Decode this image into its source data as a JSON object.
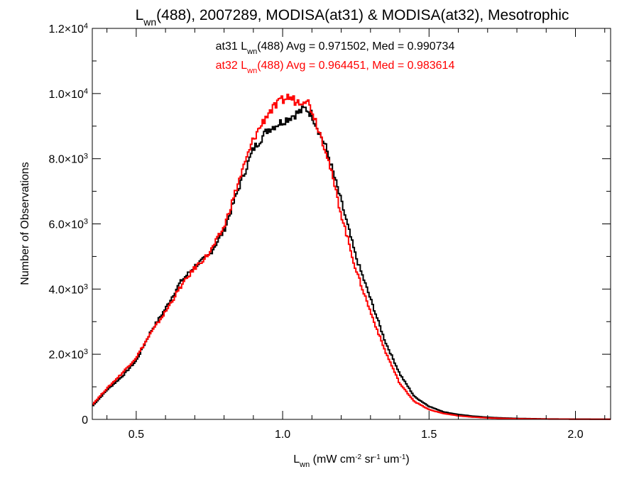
{
  "chart_data": {
    "type": "line",
    "title": {
      "pre": "L",
      "sub": "wn",
      "post": "(488), 2007289, MODISA(at31) & MODISA(at32), Mesotrophic"
    },
    "xlabel": {
      "pre": "L",
      "sub": "wn",
      "rest": " (mW cm",
      "sup1": "-2",
      "mid": " sr",
      "sup2": "-1",
      "mid2": " um",
      "sup3": "-1",
      "end": ")"
    },
    "ylabel": "Number of Observations",
    "xlim": [
      0.35,
      2.12
    ],
    "ylim": [
      0,
      12000
    ],
    "x_ticks": [
      {
        "value": 0.5,
        "label": "0.5"
      },
      {
        "value": 1.0,
        "label": "1.0"
      },
      {
        "value": 1.5,
        "label": "1.5"
      },
      {
        "value": 2.0,
        "label": "2.0"
      }
    ],
    "y_ticks": [
      {
        "value": 0,
        "mant": "0",
        "exp": ""
      },
      {
        "value": 2000,
        "mant": "2.0×10",
        "exp": "3"
      },
      {
        "value": 4000,
        "mant": "4.0×10",
        "exp": "3"
      },
      {
        "value": 6000,
        "mant": "6.0×10",
        "exp": "3"
      },
      {
        "value": 8000,
        "mant": "8.0×10",
        "exp": "3"
      },
      {
        "value": 10000,
        "mant": "1.0×10",
        "exp": "4"
      },
      {
        "value": 12000,
        "mant": "1.2×10",
        "exp": "4"
      }
    ],
    "annotations": [
      {
        "pre": "at31 L",
        "sub": "wn",
        "post": "(488) Avg = 0.971502, Med = 0.990734",
        "color": "#000000"
      },
      {
        "pre": "at32 L",
        "sub": "wn",
        "post": "(488) Avg = 0.964451, Med = 0.983614",
        "color": "#ff0000"
      }
    ],
    "series": [
      {
        "color": "#000000",
        "x": [
          0.35,
          0.4,
          0.45,
          0.5,
          0.55,
          0.6,
          0.65,
          0.7,
          0.75,
          0.8,
          0.85,
          0.9,
          0.95,
          1.0,
          1.05,
          1.08,
          1.1,
          1.15,
          1.2,
          1.25,
          1.3,
          1.35,
          1.4,
          1.45,
          1.5,
          1.55,
          1.6,
          1.65,
          1.7,
          1.75,
          1.8,
          1.9,
          2.0,
          2.12
        ],
        "y": [
          400,
          900,
          1300,
          1800,
          2700,
          3400,
          4200,
          4700,
          5050,
          5800,
          7100,
          8300,
          8900,
          9150,
          9400,
          9550,
          9350,
          8300,
          6700,
          5000,
          3700,
          2400,
          1400,
          700,
          400,
          230,
          150,
          100,
          65,
          45,
          30,
          15,
          8,
          5
        ]
      },
      {
        "color": "#ff0000",
        "x": [
          0.35,
          0.4,
          0.45,
          0.5,
          0.55,
          0.6,
          0.65,
          0.7,
          0.75,
          0.8,
          0.85,
          0.9,
          0.95,
          1.0,
          1.02,
          1.05,
          1.08,
          1.1,
          1.15,
          1.2,
          1.25,
          1.3,
          1.35,
          1.4,
          1.45,
          1.5,
          1.55,
          1.6,
          1.65,
          1.7,
          1.75,
          1.8,
          1.9,
          2.0,
          2.12
        ],
        "y": [
          450,
          950,
          1400,
          1900,
          2650,
          3300,
          4050,
          4650,
          5100,
          5900,
          7300,
          8600,
          9400,
          9800,
          9900,
          9750,
          9850,
          9500,
          8200,
          6300,
          4600,
          3300,
          2100,
          1100,
          550,
          300,
          180,
          110,
          70,
          45,
          30,
          20,
          10,
          6,
          4
        ]
      }
    ]
  }
}
